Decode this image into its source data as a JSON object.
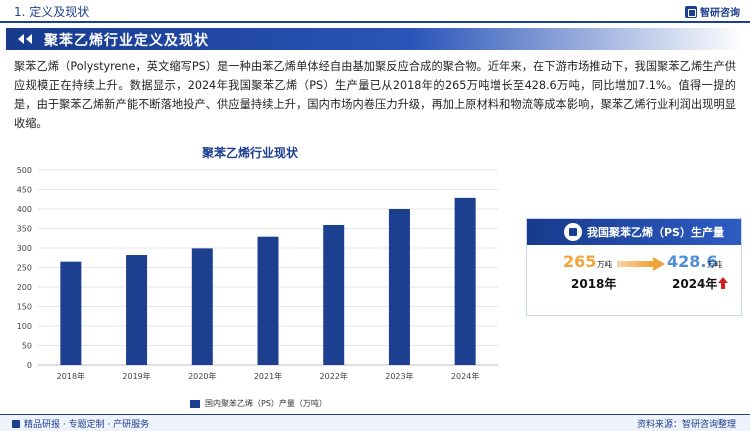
{
  "header": {
    "section_title": "1. 定义及现状",
    "brand": "智研咨询"
  },
  "hero": {
    "title": "聚苯乙烯行业定义及现状"
  },
  "description": "聚苯乙烯（Polystyrene，英文缩写PS）是一种由苯乙烯单体经自由基加聚反应合成的聚合物。近年来，在下游市场推动下，我国聚苯乙烯生产供应规模正在持续上升。数据显示，2024年我国聚苯乙烯（PS）生产量已从2018年的265万吨增长至428.6万吨，同比增加7.1%。值得一提的是，由于聚苯乙烯新产能不断落地投产、供应量持续上升，国内市场内卷压力升级，再加上原材料和物流等成本影响，聚苯乙烯行业利润出现明显收缩。",
  "chart_data": {
    "type": "bar",
    "title": "聚苯乙烯行业现状",
    "categories": [
      "2018年",
      "2019年",
      "2020年",
      "2021年",
      "2022年",
      "2023年",
      "2024年"
    ],
    "series": [
      {
        "name": "国内聚苯乙烯（PS）产量（万吨）",
        "values": [
          265,
          282,
          299,
          329,
          359,
          400,
          428.6
        ]
      }
    ],
    "yticks": [
      "0",
      "50",
      "100",
      "150",
      "200",
      "250",
      "300",
      "350",
      "400",
      "450",
      "500"
    ],
    "ylim": [
      0,
      500
    ],
    "grid": true,
    "legend_position": "bottom",
    "bar_color": "#1d3f8f"
  },
  "panel": {
    "title": "我国聚苯乙烯（PS）生产量",
    "start_value": "265",
    "start_unit": "万吨",
    "start_year": "2018年",
    "end_value": "428.6",
    "end_unit": "万吨",
    "end_year": "2024年",
    "trend_icon": "up-arrow-icon"
  },
  "footer": {
    "left": "精品研报 · 专题定制 · 产研服务",
    "right": "资料来源：智研咨询整理"
  },
  "colors": {
    "primary": "#1d3f8f",
    "accent_orange": "#f0a43a",
    "accent_blue": "#4d8fd9",
    "up_red": "#d62020"
  }
}
